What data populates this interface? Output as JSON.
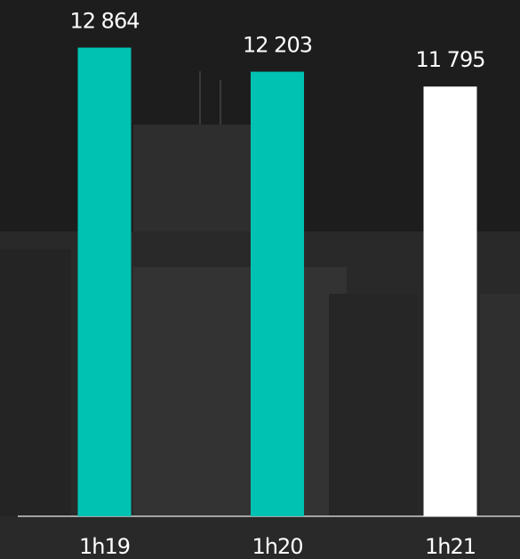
{
  "chart_data": {
    "type": "bar",
    "categories": [
      "1h19",
      "1h20",
      "1h21"
    ],
    "values": [
      12864,
      12203,
      11795
    ],
    "value_labels": [
      "12 864",
      "12 203",
      "11 795"
    ],
    "colors": [
      "#00c2b2",
      "#00c2b2",
      "#ffffff"
    ],
    "ylim": [
      0,
      14000
    ]
  }
}
